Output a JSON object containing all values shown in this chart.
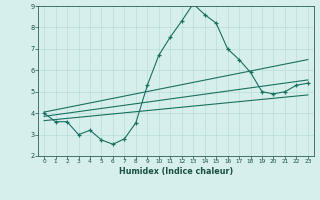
{
  "main_line_x": [
    0,
    1,
    2,
    3,
    4,
    5,
    6,
    7,
    8,
    9,
    10,
    11,
    12,
    13,
    14,
    15,
    16,
    17,
    18,
    19,
    20,
    21,
    22,
    23
  ],
  "main_line_y": [
    4.0,
    3.6,
    3.6,
    3.0,
    3.2,
    2.75,
    2.55,
    2.8,
    3.55,
    5.3,
    6.7,
    7.55,
    8.3,
    9.1,
    8.6,
    8.2,
    7.0,
    6.5,
    5.9,
    5.0,
    4.9,
    5.0,
    5.3,
    5.4
  ],
  "trend_line1_x": [
    0,
    23
  ],
  "trend_line1_y": [
    4.05,
    6.5
  ],
  "trend_line2_x": [
    0,
    23
  ],
  "trend_line2_y": [
    3.85,
    5.55
  ],
  "trend_line3_x": [
    0,
    23
  ],
  "trend_line3_y": [
    3.65,
    4.85
  ],
  "xlim": [
    -0.5,
    23.5
  ],
  "ylim": [
    2,
    9
  ],
  "xticks": [
    0,
    1,
    2,
    3,
    4,
    5,
    6,
    7,
    8,
    9,
    10,
    11,
    12,
    13,
    14,
    15,
    16,
    17,
    18,
    19,
    20,
    21,
    22,
    23
  ],
  "yticks": [
    2,
    3,
    4,
    5,
    6,
    7,
    8,
    9
  ],
  "xlabel": "Humidex (Indice chaleur)",
  "line_color": "#1a7060",
  "bg_color": "#d6efec",
  "grid_color": "#b8ddd8",
  "tick_color": "#1a5040",
  "spine_color": "#2a6055"
}
